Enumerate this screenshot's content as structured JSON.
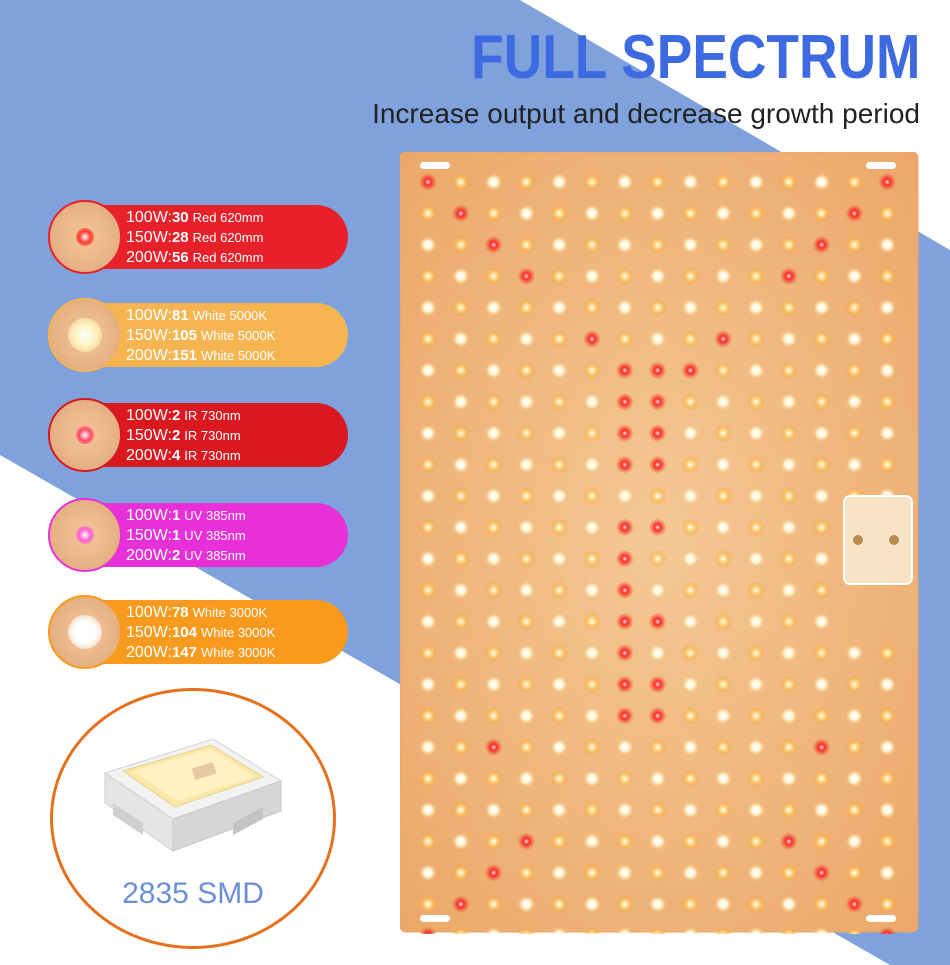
{
  "header": {
    "title": "FULL SPECTRUM",
    "subtitle": "Increase output and decrease growth period"
  },
  "colors": {
    "title_blue": "#3d6ae0",
    "background_stripe": "#7fa1dc",
    "red": "#e8202a",
    "white_light": "#f7b552",
    "ir": "#d9181f",
    "uv": "#e830d8",
    "white_3000k": "#f79a1d",
    "smd_border": "#e6711d",
    "smd_text": "#6d8ed6",
    "board": "#f0b880"
  },
  "spec_badges": [
    {
      "color_key": "red",
      "glow": "#ff3b2f",
      "rows": [
        {
          "watt": "100W:",
          "count": "30",
          "spec": "Red 620mm"
        },
        {
          "watt": "150W:",
          "count": "28",
          "spec": "Red 620mm"
        },
        {
          "watt": "200W:",
          "count": "56",
          "spec": "Red 620mm"
        }
      ]
    },
    {
      "color_key": "white_light",
      "glow": "#fff3c0",
      "rows": [
        {
          "watt": "100W:",
          "count": "81",
          "spec": "White 5000K"
        },
        {
          "watt": "150W:",
          "count": "105",
          "spec": "White 5000K"
        },
        {
          "watt": "200W:",
          "count": "151",
          "spec": "White 5000K"
        }
      ]
    },
    {
      "color_key": "ir",
      "glow": "#ff4a6a",
      "rows": [
        {
          "watt": "100W:",
          "count": "2",
          "spec": "IR 730nm"
        },
        {
          "watt": "150W:",
          "count": "2",
          "spec": "IR 730nm"
        },
        {
          "watt": "200W:",
          "count": "4",
          "spec": "IR 730nm"
        }
      ]
    },
    {
      "color_key": "uv",
      "glow": "#ff5fd0",
      "rows": [
        {
          "watt": "100W:",
          "count": "1",
          "spec": "UV 385nm"
        },
        {
          "watt": "150W:",
          "count": "1",
          "spec": "UV 385nm"
        },
        {
          "watt": "200W:",
          "count": "2",
          "spec": "UV 385nm"
        }
      ]
    },
    {
      "color_key": "white_3000k",
      "glow": "#ffffff",
      "rows": [
        {
          "watt": "100W:",
          "count": "78",
          "spec": "White 3000K"
        },
        {
          "watt": "150W:",
          "count": "104",
          "spec": "White 3000K"
        },
        {
          "watt": "200W:",
          "count": "147",
          "spec": "White 3000K"
        }
      ]
    }
  ],
  "smd": {
    "label": "2835 SMD"
  },
  "panel": {
    "led_columns": 15,
    "led_rows": 25
  }
}
